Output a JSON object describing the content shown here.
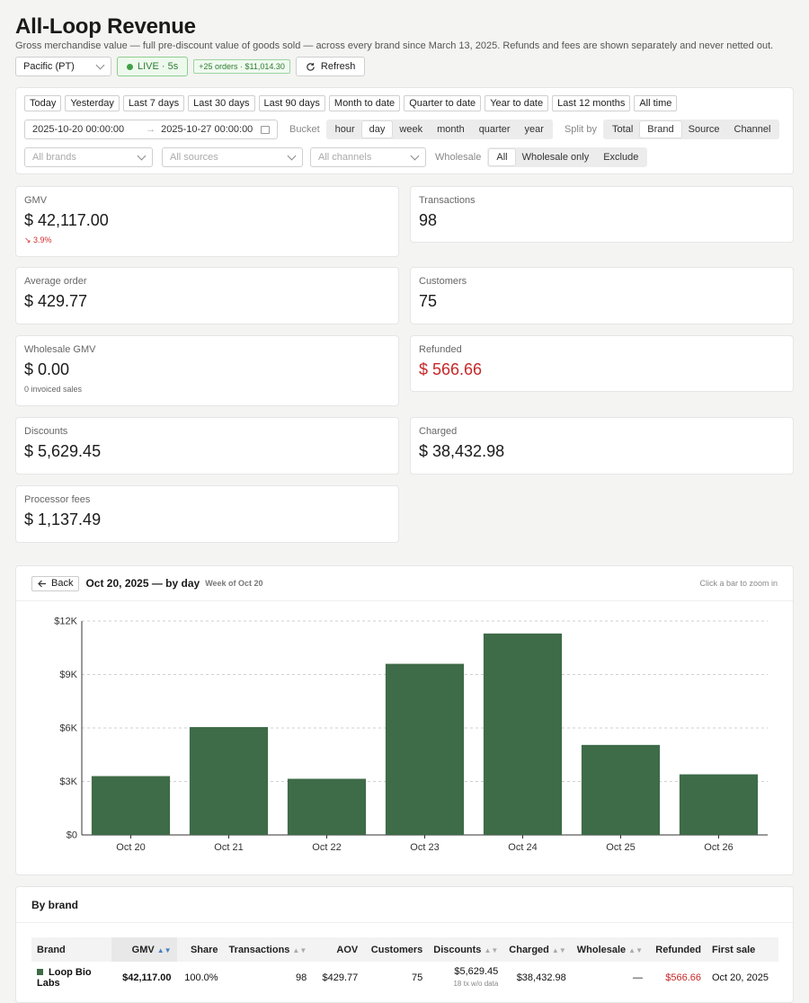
{
  "header": {
    "title": "All-Loop Revenue",
    "subtitle": "Gross merchandise value — full pre-discount value of goods sold — across every brand since March 13, 2025. Refunds and fees are shown separately and never netted out.",
    "timezone": "Pacific (PT)",
    "live_label": "LIVE · 5s",
    "orders_badge": "+25 orders · $11,014.30",
    "refresh_label": "Refresh"
  },
  "filters": {
    "presets": [
      "Today",
      "Yesterday",
      "Last 7 days",
      "Last 30 days",
      "Last 90 days",
      "Month to date",
      "Quarter to date",
      "Year to date",
      "Last 12 months",
      "All time"
    ],
    "date_from": "2025-10-20 00:00:00",
    "date_arrow": "→",
    "date_to": "2025-10-27 00:00:00",
    "bucket_label": "Bucket",
    "buckets": [
      "hour",
      "day",
      "week",
      "month",
      "quarter",
      "year"
    ],
    "bucket_selected": "day",
    "split_label": "Split by",
    "splits": [
      "Total",
      "Brand",
      "Source",
      "Channel"
    ],
    "split_selected": "Brand",
    "brands_placeholder": "All brands",
    "sources_placeholder": "All sources",
    "channels_placeholder": "All channels",
    "wholesale_label": "Wholesale",
    "wholesale_options": [
      "All",
      "Wholesale only",
      "Exclude"
    ],
    "wholesale_selected": "All"
  },
  "metrics": {
    "gmv": {
      "label": "GMV",
      "value": "$ 42,117.00",
      "delta": "3.9%"
    },
    "transactions": {
      "label": "Transactions",
      "value": "98"
    },
    "avg_order": {
      "label": "Average order",
      "value": "$ 429.77"
    },
    "customers": {
      "label": "Customers",
      "value": "75"
    },
    "wholesale_gmv": {
      "label": "Wholesale GMV",
      "value": "$ 0.00",
      "sub": "0 invoiced sales"
    },
    "refunded": {
      "label": "Refunded",
      "value": "$ 566.66"
    },
    "discounts": {
      "label": "Discounts",
      "value": "$ 5,629.45"
    },
    "charged": {
      "label": "Charged",
      "value": "$ 38,432.98"
    },
    "processor_fees": {
      "label": "Processor fees",
      "value": "$ 1,137.49"
    }
  },
  "chart": {
    "back_label": "Back",
    "title": "Oct 20, 2025 — by day",
    "subtitle": "Week of Oct 20",
    "hint": "Click a bar to zoom in"
  },
  "chart_data": {
    "type": "bar",
    "categories": [
      "Oct 20",
      "Oct 21",
      "Oct 22",
      "Oct 23",
      "Oct 24",
      "Oct 25",
      "Oct 26"
    ],
    "values": [
      3300,
      6050,
      3150,
      9600,
      11300,
      5050,
      3400
    ],
    "yticks": [
      "$0",
      "$3K",
      "$6K",
      "$9K",
      "$12K"
    ],
    "ylim": [
      0,
      12000
    ],
    "grid": true,
    "color": "#3e6b48"
  },
  "brand_table": {
    "title": "By brand",
    "columns": [
      "Brand",
      "GMV",
      "Share",
      "Transactions",
      "AOV",
      "Customers",
      "Discounts",
      "Charged",
      "Wholesale",
      "Refunded",
      "First sale"
    ],
    "rows": [
      {
        "brand": "Loop Bio Labs",
        "gmv": "$42,117.00",
        "share": "100.0%",
        "transactions": "98",
        "aov": "$429.77",
        "customers": "75",
        "discounts": "$5,629.45",
        "discounts_note": "18 tx w/o data",
        "charged": "$38,432.98",
        "wholesale": "—",
        "refunded": "$566.66",
        "first_sale": "Oct 20, 2025"
      }
    ]
  },
  "colors": {
    "accent_green": "#3e6b48",
    "live_green": "#2e7d32",
    "negative_red": "#c62828"
  }
}
